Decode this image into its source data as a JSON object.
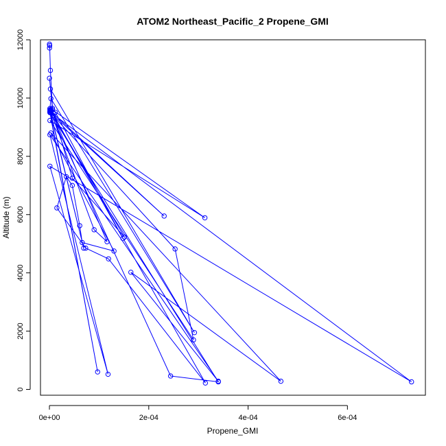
{
  "chart_data": {
    "type": "line",
    "title": "ATOM2 Northeast_Pacific_2 Propene_GMI",
    "xlabel": "Propene_GMI",
    "ylabel": "Altitude (m)",
    "xlim": [
      -1.8e-05,
      0.000757
    ],
    "ylim": [
      -200,
      12000
    ],
    "x_ticks": [
      {
        "value": 0,
        "label": "0e+00"
      },
      {
        "value": 0.0002,
        "label": "2e-04"
      },
      {
        "value": 0.0004,
        "label": "4e-04"
      },
      {
        "value": 0.0006,
        "label": "6e-04"
      }
    ],
    "y_ticks": [
      {
        "value": 0,
        "label": "0"
      },
      {
        "value": 2000,
        "label": "2000"
      },
      {
        "value": 4000,
        "label": "4000"
      },
      {
        "value": 6000,
        "label": "6000"
      },
      {
        "value": 8000,
        "label": "8000"
      },
      {
        "value": 10000,
        "label": "10000"
      },
      {
        "value": 12000,
        "label": "12000"
      }
    ],
    "color": "#0000ff",
    "marker": "open-circle",
    "grid": false,
    "series": [
      {
        "x": [
          1e-07,
          2e-07,
          5e-07,
          2e-06,
          6e-06,
          1e-07,
          8e-06,
          2e-06,
          0.000292,
          3e-06,
          1e-06,
          0.000148,
          1.2e-05,
          3e-06,
          0.000116,
          9e-05,
          2e-06,
          0.000231,
          1e-06,
          0.000253,
          0.00029,
          1e-06,
          0.000313,
          6e-06,
          4.6e-05,
          0.000151,
          2e-06,
          0.000314,
          0.000119,
          7.3e-05,
          1.5e-05,
          3.4e-05,
          4.6e-05,
          6.1e-05,
          6.6e-05,
          0.00013,
          3e-06,
          0.000466,
          0.000164,
          0.00034,
          1e-06,
          0.000118,
          1e-06,
          0.000729,
          1e-06,
          0.000244,
          0.00034,
          1e-06,
          9.7e-05,
          1e-06,
          6.9e-05,
          1e-06
        ],
        "y": [
          11850,
          11720,
          11800,
          10950,
          9650,
          10680,
          9400,
          10310,
          1950,
          9980,
          9640,
          5180,
          9510,
          9600,
          5070,
          5480,
          9560,
          5950,
          9520,
          4820,
          1700,
          9230,
          5890,
          9600,
          7250,
          5230,
          9570,
          220,
          4480,
          4850,
          6230,
          7300,
          7000,
          5620,
          5040,
          4750,
          8800,
          280,
          4020,
          280,
          8740,
          520,
          7660,
          260,
          9530,
          460,
          260,
          9500,
          600,
          9560,
          4850,
          9600
        ]
      }
    ]
  }
}
